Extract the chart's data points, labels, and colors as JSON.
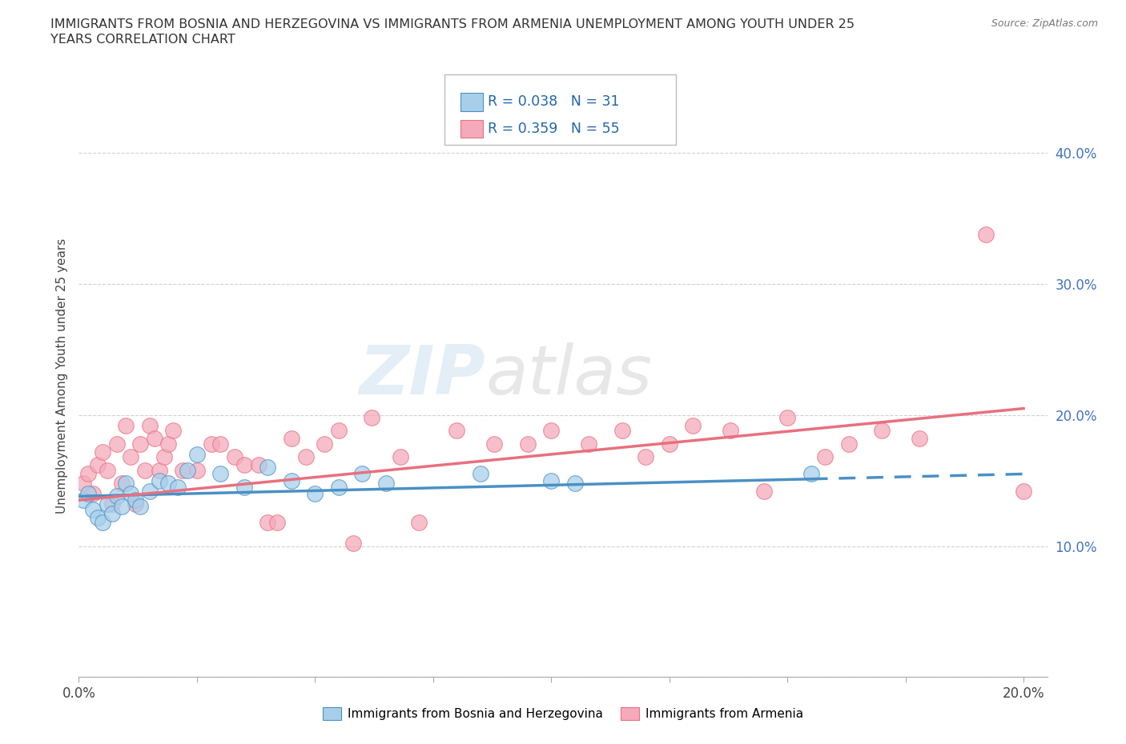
{
  "title_line1": "IMMIGRANTS FROM BOSNIA AND HERZEGOVINA VS IMMIGRANTS FROM ARMENIA UNEMPLOYMENT AMONG YOUTH UNDER 25",
  "title_line2": "YEARS CORRELATION CHART",
  "source": "Source: ZipAtlas.com",
  "ylabel": "Unemployment Among Youth under 25 years",
  "xlim": [
    0.0,
    0.205
  ],
  "ylim": [
    0.0,
    0.46
  ],
  "x_ticks": [
    0.0,
    0.025,
    0.05,
    0.075,
    0.1,
    0.125,
    0.15,
    0.175,
    0.2
  ],
  "y_ticks": [
    0.0,
    0.1,
    0.2,
    0.3,
    0.4
  ],
  "bosnia_R": 0.038,
  "bosnia_N": 31,
  "armenia_R": 0.359,
  "armenia_N": 55,
  "bosnia_color": "#A8CFEA",
  "armenia_color": "#F5AABB",
  "bosnia_line_color": "#4A90C4",
  "armenia_line_color": "#E8707F",
  "watermark_zip": "ZIP",
  "watermark_atlas": "atlas",
  "bosnia_x": [
    0.001,
    0.002,
    0.003,
    0.004,
    0.005,
    0.006,
    0.007,
    0.008,
    0.009,
    0.01,
    0.011,
    0.012,
    0.013,
    0.015,
    0.017,
    0.019,
    0.021,
    0.023,
    0.025,
    0.03,
    0.035,
    0.04,
    0.045,
    0.05,
    0.055,
    0.06,
    0.065,
    0.085,
    0.1,
    0.105,
    0.155
  ],
  "bosnia_y": [
    0.135,
    0.14,
    0.128,
    0.122,
    0.118,
    0.132,
    0.125,
    0.138,
    0.13,
    0.148,
    0.14,
    0.135,
    0.13,
    0.142,
    0.15,
    0.148,
    0.145,
    0.158,
    0.17,
    0.155,
    0.145,
    0.16,
    0.15,
    0.14,
    0.145,
    0.155,
    0.148,
    0.155,
    0.15,
    0.148,
    0.155
  ],
  "armenia_x": [
    0.001,
    0.002,
    0.003,
    0.004,
    0.005,
    0.006,
    0.007,
    0.008,
    0.009,
    0.01,
    0.011,
    0.012,
    0.013,
    0.014,
    0.015,
    0.016,
    0.017,
    0.018,
    0.019,
    0.02,
    0.022,
    0.025,
    0.028,
    0.03,
    0.033,
    0.035,
    0.038,
    0.04,
    0.042,
    0.045,
    0.048,
    0.052,
    0.055,
    0.058,
    0.062,
    0.068,
    0.072,
    0.08,
    0.088,
    0.095,
    0.1,
    0.108,
    0.115,
    0.12,
    0.125,
    0.13,
    0.138,
    0.145,
    0.15,
    0.158,
    0.163,
    0.17,
    0.178,
    0.192,
    0.2
  ],
  "armenia_y": [
    0.148,
    0.155,
    0.14,
    0.162,
    0.172,
    0.158,
    0.132,
    0.178,
    0.148,
    0.192,
    0.168,
    0.132,
    0.178,
    0.158,
    0.192,
    0.182,
    0.158,
    0.168,
    0.178,
    0.188,
    0.158,
    0.158,
    0.178,
    0.178,
    0.168,
    0.162,
    0.162,
    0.118,
    0.118,
    0.182,
    0.168,
    0.178,
    0.188,
    0.102,
    0.198,
    0.168,
    0.118,
    0.188,
    0.178,
    0.178,
    0.188,
    0.178,
    0.188,
    0.168,
    0.178,
    0.192,
    0.188,
    0.142,
    0.198,
    0.168,
    0.178,
    0.188,
    0.182,
    0.338,
    0.142
  ]
}
